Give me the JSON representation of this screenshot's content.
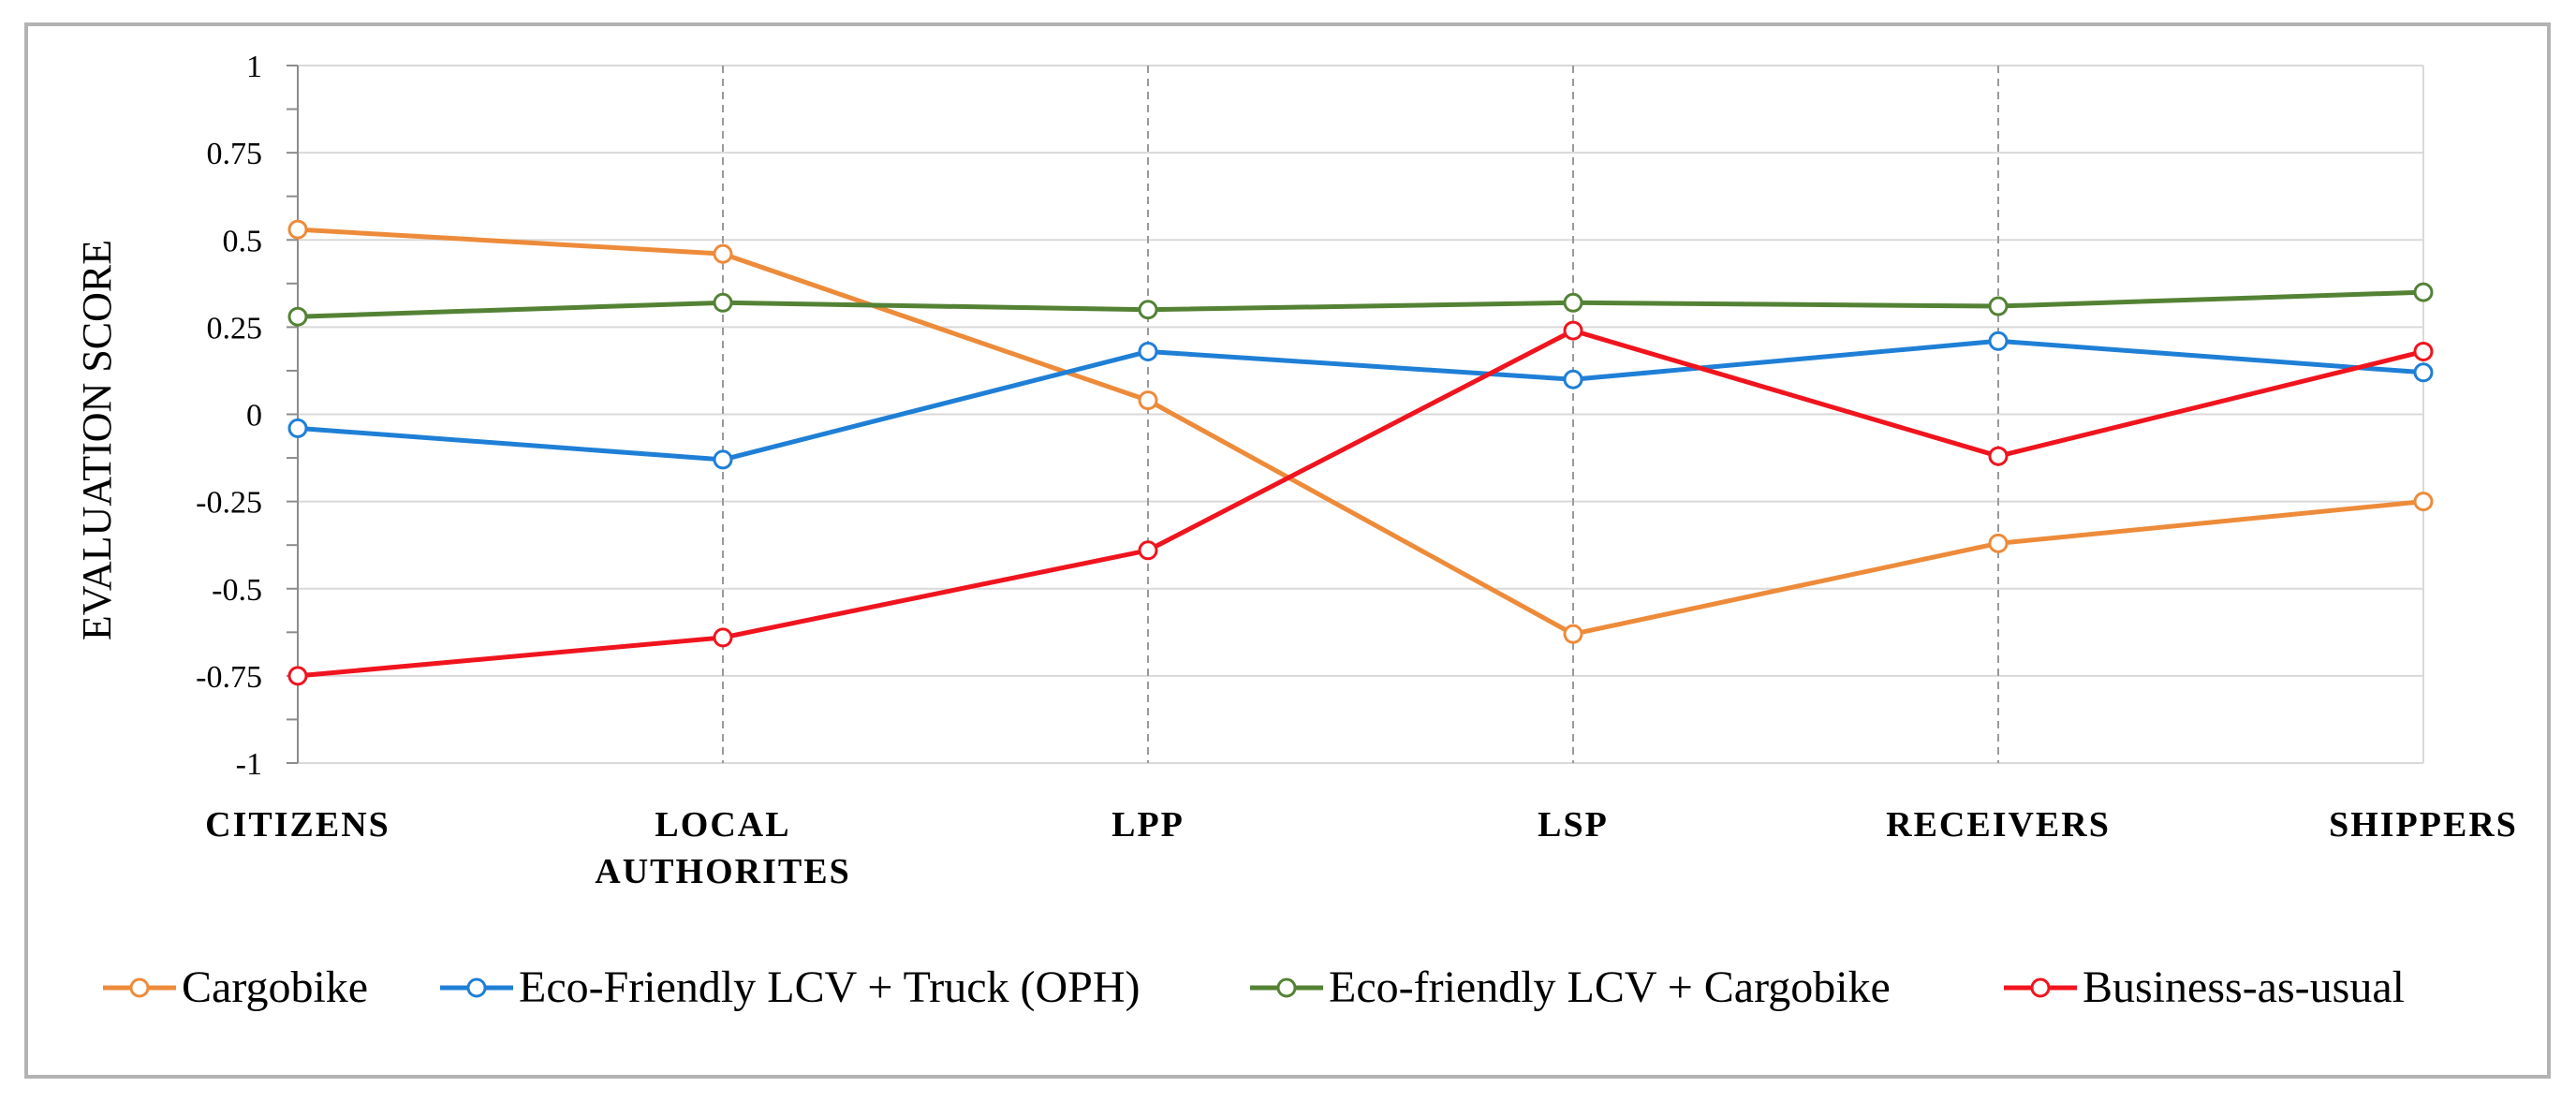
{
  "chart_data": {
    "type": "line",
    "title": "",
    "xlabel": "",
    "ylabel": "EVALUATION SCORE",
    "ylim": [
      -1,
      1
    ],
    "yticks": [
      1,
      0.75,
      0.5,
      0.25,
      0,
      -0.25,
      -0.5,
      -0.75,
      -1
    ],
    "ytick_labels": [
      "1",
      "0.75",
      "0.5",
      "0.25",
      "0",
      "-0.25",
      "-0.5",
      "-0.75",
      "-1"
    ],
    "categories": [
      [
        "CITIZENS"
      ],
      [
        "LOCAL",
        "AUTHORITES"
      ],
      [
        "LPP"
      ],
      [
        "LSP"
      ],
      [
        "RECEIVERS"
      ],
      [
        "SHIPPERS"
      ]
    ],
    "legend_position": "bottom",
    "series": [
      {
        "name": "Cargobike",
        "color": "#ED8B3A",
        "values": [
          0.53,
          0.46,
          0.04,
          -0.63,
          -0.37,
          -0.25
        ]
      },
      {
        "name": "Eco-Friendly LCV + Truck (OPH)",
        "color": "#1F7FD6",
        "values": [
          -0.04,
          -0.13,
          0.18,
          0.1,
          0.21,
          0.12
        ]
      },
      {
        "name": "Eco-friendly LCV + Cargobike",
        "color": "#548235",
        "values": [
          0.28,
          0.32,
          0.3,
          0.32,
          0.31,
          0.35
        ]
      },
      {
        "name": "Business-as-usual",
        "color": "#F0141E",
        "values": [
          -0.75,
          -0.64,
          -0.39,
          0.24,
          -0.12,
          0.18
        ]
      }
    ]
  }
}
